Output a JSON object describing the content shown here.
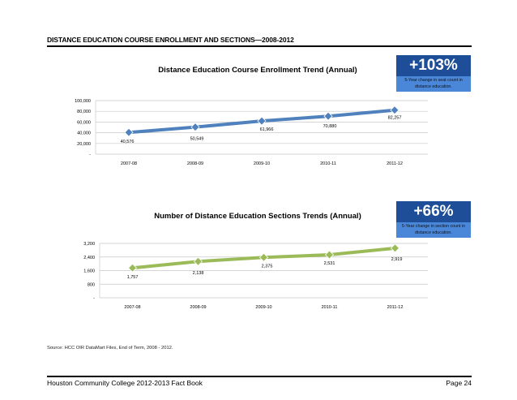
{
  "header": {
    "title": "DISTANCE EDUCATION COURSE ENROLLMENT AND SECTIONS—2008-2012"
  },
  "chart_data": [
    {
      "type": "line",
      "title": "Distance Education Course Enrollment Trend (Annual)",
      "categories": [
        "2007-08",
        "2008-09",
        "2009-10",
        "2010-11",
        "2011-12"
      ],
      "values": [
        40576,
        50549,
        61966,
        70880,
        82257
      ],
      "data_labels": [
        "40,576",
        "50,549",
        "61,966",
        "70,880",
        "82,257"
      ],
      "y_ticks": [
        "-",
        "20,000",
        "40,000",
        "60,000",
        "80,000",
        "100,000"
      ],
      "ylim": [
        0,
        100000
      ],
      "grid": true,
      "line_color": "#4f81bd",
      "marker": "diamond",
      "badge": {
        "value": "+103%",
        "caption": "5-Year change in seat count in distance education."
      }
    },
    {
      "type": "line",
      "title": "Number of Distance Education Sections Trends (Annual)",
      "categories": [
        "2007-08",
        "2008-09",
        "2009-10",
        "2010-11",
        "2011-12"
      ],
      "values": [
        1757,
        2138,
        2375,
        2531,
        2919
      ],
      "data_labels": [
        "1,757",
        "2,138",
        "2,375",
        "2,531",
        "2,919"
      ],
      "y_ticks": [
        "-",
        "800",
        "1,600",
        "2,400",
        "3,200"
      ],
      "ylim": [
        0,
        3200
      ],
      "grid": true,
      "line_color": "#9bbb59",
      "marker": "diamond",
      "badge": {
        "value": "+66%",
        "caption": "5-Year change in section count in distance education."
      }
    }
  ],
  "source": "Source: HCC OIR DataMart Files, End of Term, 2008 - 2012.",
  "footer": {
    "left": "Houston Community College 2012-2013 Fact Book",
    "right": "Page 24"
  }
}
